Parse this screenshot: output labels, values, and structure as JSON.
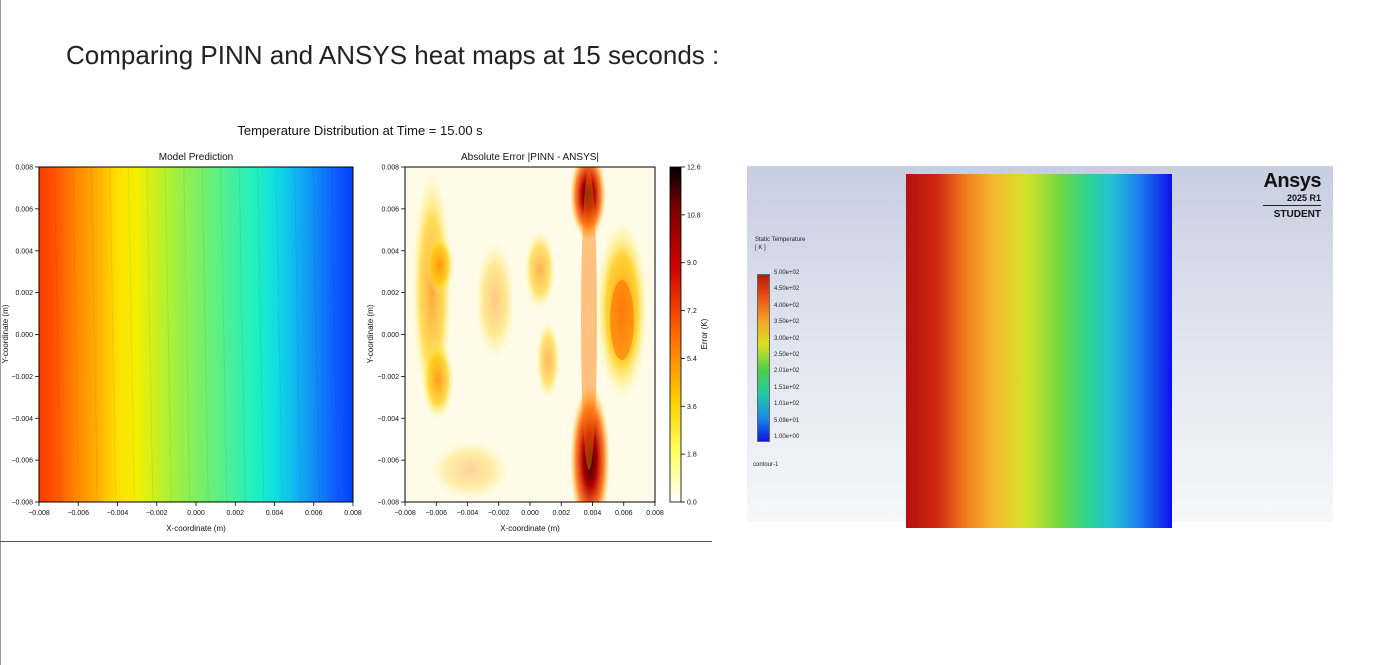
{
  "slide": {
    "title": "Comparing PINN and ANSYS heat maps at 15 seconds :"
  },
  "figure": {
    "suptitle": "Temperature Distribution at Time = 15.00 s"
  },
  "chart_data": [
    {
      "type": "heatmap",
      "title": "Model Prediction",
      "xlabel": "X-coordinate (m)",
      "ylabel": "Y-coordinate (m)",
      "xlim": [
        -0.008,
        0.008
      ],
      "ylim": [
        -0.008,
        0.008
      ],
      "xticks": [
        "−0.008",
        "−0.006",
        "−0.004",
        "−0.002",
        "0.000",
        "0.002",
        "0.004",
        "0.006",
        "0.008"
      ],
      "yticks": [
        "0.008",
        "0.006",
        "0.004",
        "0.002",
        "0.000",
        "−0.002",
        "−0.004",
        "−0.006",
        "−0.008"
      ],
      "colormap": "jet",
      "gradient_colors": [
        "#ff3a00",
        "#ff5a00",
        "#ff8c00",
        "#ffb000",
        "#ffe000",
        "#f2f000",
        "#c8f020",
        "#a0f040",
        "#80f060",
        "#60f080",
        "#40f0a0",
        "#20f0c0",
        "#10e0e0",
        "#10b8f0",
        "#1090f8",
        "#1060ff",
        "#0040ff"
      ]
    },
    {
      "type": "heatmap",
      "title": "Absolute Error |PINN - ANSYS|",
      "xlabel": "X-coordinate (m)",
      "ylabel": "Y-coordinate (m)",
      "xlim": [
        -0.008,
        0.008
      ],
      "ylim": [
        -0.008,
        0.008
      ],
      "xticks": [
        "−0.008",
        "−0.006",
        "−0.004",
        "−0.002",
        "0.000",
        "0.002",
        "0.004",
        "0.006",
        "0.008"
      ],
      "yticks": [
        "0.008",
        "0.006",
        "0.004",
        "0.002",
        "0.000",
        "−0.002",
        "−0.004",
        "−0.006",
        "−0.008"
      ],
      "colormap": "hot_r",
      "colorbar": {
        "label": "Error (K)",
        "ticks": [
          "12.6",
          "10.8",
          "9.0",
          "7.2",
          "5.4",
          "3.6",
          "1.8",
          "0.0"
        ]
      }
    }
  ],
  "ansys": {
    "brand": "Ansys",
    "version": "2025 R1",
    "edition": "STUDENT",
    "legend_title": "Static Temperature\n[ K ]",
    "legend_labels": [
      "5.00e+02",
      "4.50e+02",
      "4.00e+02",
      "3.50e+02",
      "3.00e+02",
      "2.50e+02",
      "2.01e+02",
      "1.51e+02",
      "1.01e+02",
      "5.09e+01",
      "1.00e+00"
    ],
    "contour_name": "contour-1"
  }
}
